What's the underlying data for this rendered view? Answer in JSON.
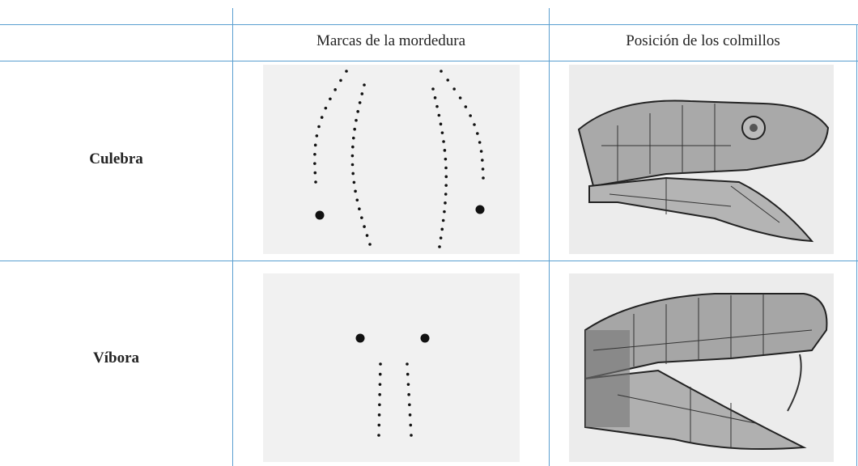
{
  "table": {
    "columns": [
      "Marcas de la mordedura",
      "Posición de los colmillos"
    ],
    "rows": [
      "Culebra",
      "Víbora"
    ]
  }
}
